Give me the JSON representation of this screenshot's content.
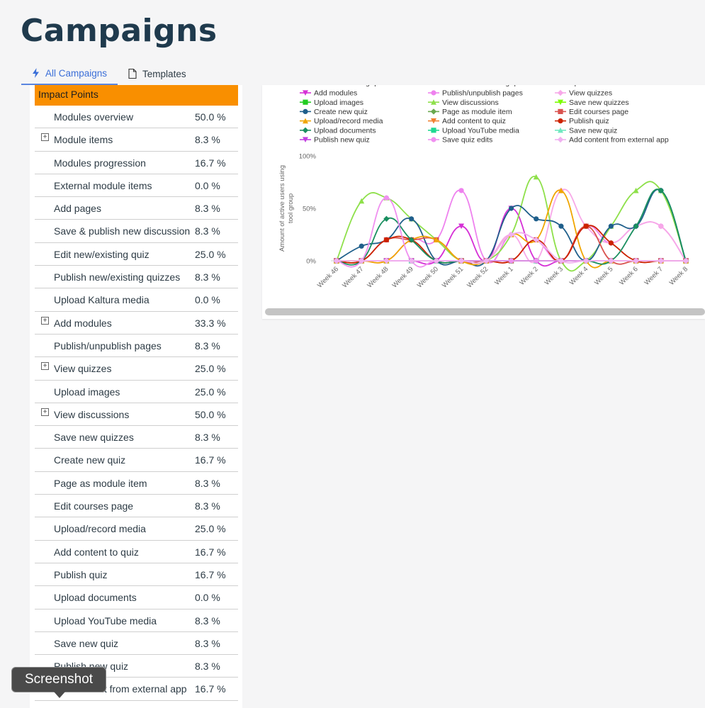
{
  "page": {
    "title": "Campaigns"
  },
  "tabs": [
    {
      "label": "All Campaigns",
      "icon": "bolt-icon",
      "active": true
    },
    {
      "label": "Templates",
      "icon": "document-icon",
      "active": false
    }
  ],
  "impact": {
    "header": "Impact Points",
    "rows": [
      {
        "label": "Modules overview",
        "value": "50.0 %",
        "expandable": false
      },
      {
        "label": "Module items",
        "value": "8.3 %",
        "expandable": true
      },
      {
        "label": "Modules progression",
        "value": "16.7 %",
        "expandable": false
      },
      {
        "label": "External module items",
        "value": "0.0 %",
        "expandable": false
      },
      {
        "label": "Add pages",
        "value": "8.3 %",
        "expandable": false
      },
      {
        "label": "Save & publish new discussion",
        "value": "8.3 %",
        "expandable": false
      },
      {
        "label": "Edit new/existing quiz",
        "value": "25.0 %",
        "expandable": false
      },
      {
        "label": "Publish new/existing quizzes",
        "value": "8.3 %",
        "expandable": false
      },
      {
        "label": "Upload Kaltura media",
        "value": "0.0 %",
        "expandable": false
      },
      {
        "label": "Add modules",
        "value": "33.3 %",
        "expandable": true
      },
      {
        "label": "Publish/unpublish pages",
        "value": "8.3 %",
        "expandable": false
      },
      {
        "label": "View quizzes",
        "value": "25.0 %",
        "expandable": true
      },
      {
        "label": "Upload images",
        "value": "25.0 %",
        "expandable": false
      },
      {
        "label": "View discussions",
        "value": "50.0 %",
        "expandable": true
      },
      {
        "label": "Save new quizzes",
        "value": "8.3 %",
        "expandable": false
      },
      {
        "label": "Create new quiz",
        "value": "16.7 %",
        "expandable": false
      },
      {
        "label": "Page as module item",
        "value": "8.3 %",
        "expandable": false
      },
      {
        "label": "Edit courses page",
        "value": "8.3 %",
        "expandable": false
      },
      {
        "label": "Upload/record media",
        "value": "25.0 %",
        "expandable": false
      },
      {
        "label": "Add content to quiz",
        "value": "16.7 %",
        "expandable": false
      },
      {
        "label": "Publish quiz",
        "value": "16.7 %",
        "expandable": false
      },
      {
        "label": "Upload documents",
        "value": "0.0 %",
        "expandable": false
      },
      {
        "label": "Upload YouTube media",
        "value": "8.3 %",
        "expandable": false
      },
      {
        "label": "Save new quiz",
        "value": "8.3 %",
        "expandable": false
      },
      {
        "label": "Publish new quiz",
        "value": "8.3 %",
        "expandable": false
      },
      {
        "label": "Add content from external app",
        "value": "16.7 %",
        "expandable": false
      }
    ]
  },
  "tooltip": {
    "text": "Screenshot"
  },
  "chart_data": {
    "type": "line",
    "ylabel": "Amount of active users using tool group",
    "xlabel": "",
    "ylim": [
      0,
      100
    ],
    "yticks": [
      "0%",
      "50%",
      "100%"
    ],
    "categories": [
      "Week 46",
      "Week 47",
      "Week 48",
      "Week 49",
      "Week 50",
      "Week 51",
      "Week 52",
      "Week 1",
      "Week 2",
      "Week 3",
      "Week 4",
      "Week 5",
      "Week 6",
      "Week 7",
      "Week 8"
    ],
    "legend_partial": [
      "Edit new/existing quiz",
      "Publish new/existing quizzes",
      "Upload Kaltura media"
    ],
    "series": [
      {
        "name": "Add modules",
        "color": "#d62fd6",
        "marker": "triangle-down",
        "values": [
          0,
          0,
          0,
          0,
          0,
          33,
          0,
          50,
          0,
          0,
          0,
          0,
          0,
          0,
          0
        ]
      },
      {
        "name": "Publish/unpublish pages",
        "color": "#ee82ee",
        "marker": "circle",
        "values": [
          0,
          0,
          0,
          20,
          20,
          67,
          0,
          25,
          20,
          0,
          33,
          17,
          33,
          33,
          0
        ]
      },
      {
        "name": "View quizzes",
        "color": "#f7a8e8",
        "marker": "diamond",
        "values": [
          0,
          0,
          0,
          0,
          0,
          0,
          0,
          25,
          0,
          67,
          33,
          17,
          33,
          33,
          0
        ]
      },
      {
        "name": "Upload images",
        "color": "#22cc22",
        "marker": "square",
        "values": [
          0,
          0,
          0,
          0,
          0,
          0,
          0,
          0,
          0,
          0,
          0,
          0,
          0,
          0,
          0
        ]
      },
      {
        "name": "View discussions",
        "color": "#8ee04a",
        "marker": "triangle",
        "values": [
          0,
          57,
          60,
          40,
          20,
          0,
          0,
          25,
          80,
          0,
          0,
          33,
          67,
          67,
          0
        ]
      },
      {
        "name": "Save new quizzes",
        "color": "#7cfc00",
        "marker": "triangle-down",
        "values": [
          0,
          0,
          0,
          0,
          0,
          0,
          0,
          0,
          0,
          0,
          0,
          0,
          0,
          0,
          0
        ]
      },
      {
        "name": "Create new quiz",
        "color": "#1f5f8b",
        "marker": "circle",
        "values": [
          0,
          14,
          20,
          40,
          0,
          0,
          0,
          50,
          40,
          33,
          0,
          33,
          33,
          67,
          0
        ]
      },
      {
        "name": "Page as module item",
        "color": "#6aa84f",
        "marker": "diamond",
        "values": [
          0,
          0,
          0,
          0,
          0,
          0,
          0,
          0,
          0,
          0,
          0,
          0,
          0,
          0,
          0
        ]
      },
      {
        "name": "Edit courses page",
        "color": "#d9534f",
        "marker": "square",
        "values": [
          0,
          0,
          20,
          20,
          20,
          0,
          0,
          0,
          20,
          0,
          33,
          0,
          0,
          0,
          0
        ]
      },
      {
        "name": "Upload/record media",
        "color": "#f0a500",
        "marker": "triangle",
        "values": [
          0,
          0,
          0,
          20,
          20,
          0,
          0,
          25,
          20,
          67,
          0,
          0,
          0,
          0,
          0
        ]
      },
      {
        "name": "Add content to quiz",
        "color": "#f08030",
        "marker": "triangle-down",
        "values": [
          0,
          0,
          0,
          0,
          0,
          0,
          0,
          0,
          0,
          0,
          0,
          0,
          0,
          0,
          0
        ]
      },
      {
        "name": "Publish quiz",
        "color": "#cc2200",
        "marker": "circle",
        "values": [
          0,
          0,
          20,
          20,
          0,
          0,
          0,
          0,
          20,
          0,
          33,
          17,
          0,
          0,
          0
        ]
      },
      {
        "name": "Upload documents",
        "color": "#1a8f60",
        "marker": "diamond",
        "values": [
          0,
          0,
          40,
          20,
          0,
          0,
          0,
          0,
          0,
          0,
          0,
          0,
          33,
          67,
          0
        ]
      },
      {
        "name": "Upload YouTube media",
        "color": "#20d890",
        "marker": "square",
        "values": [
          0,
          0,
          0,
          0,
          0,
          0,
          0,
          0,
          0,
          0,
          0,
          0,
          0,
          0,
          0
        ]
      },
      {
        "name": "Save new quiz",
        "color": "#70e8c0",
        "marker": "triangle",
        "values": [
          0,
          0,
          0,
          0,
          0,
          0,
          0,
          0,
          0,
          0,
          0,
          0,
          0,
          0,
          0
        ]
      },
      {
        "name": "Publish new quiz",
        "color": "#c040e0",
        "marker": "triangle-down",
        "values": [
          0,
          0,
          0,
          0,
          0,
          0,
          0,
          0,
          0,
          0,
          0,
          0,
          0,
          0,
          0
        ]
      },
      {
        "name": "Save quiz edits",
        "color": "#f090f0",
        "marker": "circle",
        "values": [
          0,
          0,
          60,
          0,
          0,
          0,
          0,
          0,
          0,
          0,
          0,
          0,
          0,
          0,
          0
        ]
      },
      {
        "name": "Add content from external app",
        "color": "#f0b0f0",
        "marker": "diamond",
        "values": [
          0,
          0,
          0,
          0,
          0,
          0,
          0,
          25,
          20,
          0,
          0,
          0,
          0,
          0,
          0
        ]
      }
    ]
  }
}
